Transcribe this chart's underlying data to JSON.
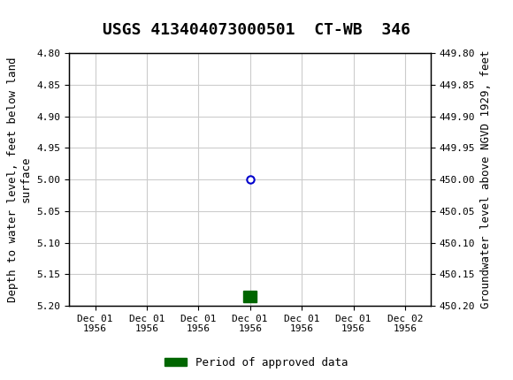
{
  "title": "USGS 413404073000501  CT-WB  346",
  "ylabel_left": "Depth to water level, feet below land\nsurface",
  "ylabel_right": "Groundwater level above NGVD 1929, feet",
  "ylim_left": [
    4.8,
    5.2
  ],
  "ylim_right": [
    449.8,
    450.2
  ],
  "yticks_left": [
    4.8,
    4.85,
    4.9,
    4.95,
    5.0,
    5.05,
    5.1,
    5.15,
    5.2
  ],
  "yticks_right": [
    449.8,
    449.85,
    449.9,
    449.95,
    450.0,
    450.05,
    450.1,
    450.15,
    450.2
  ],
  "data_point_x": 3.0,
  "data_point_y": 5.0,
  "data_point_color": "#0000cc",
  "data_point_marker": "o",
  "data_point_size": 6,
  "bar_x": 3.0,
  "bar_y": 5.185,
  "bar_color": "#006600",
  "bar_width": 0.25,
  "bar_height": 0.018,
  "x_tick_labels": [
    "Dec 01\n1956",
    "Dec 01\n1956",
    "Dec 01\n1956",
    "Dec 01\n1956",
    "Dec 01\n1956",
    "Dec 01\n1956",
    "Dec 02\n1956"
  ],
  "x_tick_positions": [
    0,
    1,
    2,
    3,
    4,
    5,
    6
  ],
  "xlim": [
    -0.5,
    6.5
  ],
  "grid_color": "#cccccc",
  "background_color": "#ffffff",
  "plot_bg_color": "#ffffff",
  "header_color": "#1a6b3a",
  "legend_label": "Period of approved data",
  "legend_color": "#006600",
  "title_fontsize": 13,
  "axis_label_fontsize": 9,
  "tick_fontsize": 8
}
